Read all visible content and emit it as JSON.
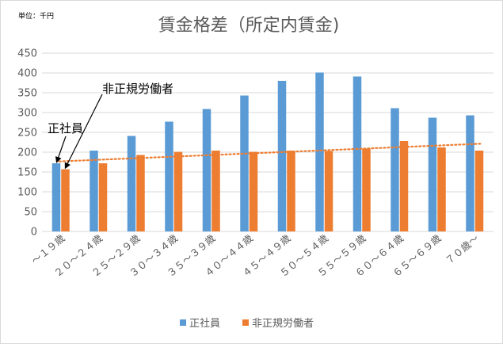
{
  "chart_data": {
    "type": "bar",
    "title": "賃金格差（所定内賃金)",
    "unit_label": "単位：千円",
    "categories": [
      "～１９歳",
      "２０～２４歳",
      "２５～２９歳",
      "３０～３４歳",
      "３５～３９歳",
      "４０～４４歳",
      "４５～４９歳",
      "５０～５４歳",
      "５５～５９歳",
      "６０～６４歳",
      "６５～６９歳",
      "７０歳～"
    ],
    "series": [
      {
        "name": "正社員",
        "color": "#5b9bd5",
        "values": [
          172,
          204,
          241,
          277,
          309,
          343,
          380,
          401,
          391,
          311,
          287,
          293
        ]
      },
      {
        "name": "非正規労働者",
        "color": "#ed7d31",
        "values": [
          157,
          172,
          193,
          201,
          204,
          201,
          204,
          203,
          209,
          228,
          212,
          204
        ]
      }
    ],
    "trendline": {
      "series": "非正規労働者",
      "type": "linear",
      "color": "#ed7d31",
      "style": "dotted"
    },
    "ylim": [
      0,
      450
    ],
    "yticks": [
      0,
      50,
      100,
      150,
      200,
      250,
      300,
      350,
      400,
      450
    ],
    "grid": true,
    "legend_position": "bottom",
    "annotations": [
      {
        "text": "正社員",
        "points_to": "正社員"
      },
      {
        "text": "非正規労働者",
        "points_to": "非正規労働者"
      }
    ]
  }
}
